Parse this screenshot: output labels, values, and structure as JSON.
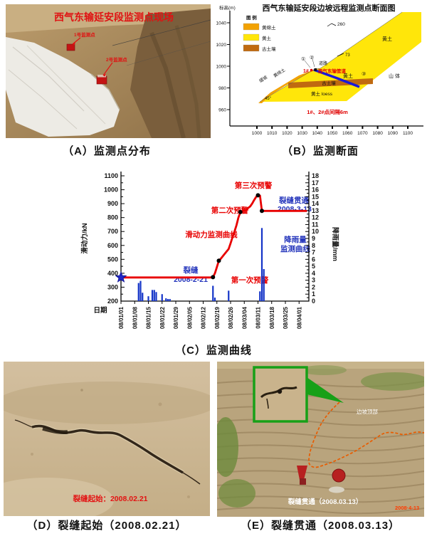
{
  "figure": {
    "captions": {
      "a": "（A）监测点分布",
      "b": "（B）监测断面",
      "c": "（C）监测曲线",
      "d": "（D）裂缝起始（2008.02.21）",
      "e": "（E）裂缝贯通（2008.03.13）"
    }
  },
  "panel_a": {
    "photo_title": "西气东输延安段监测点现场",
    "marker1_label": "1号监测点",
    "marker2_label": "2号监测点"
  },
  "panel_b": {
    "title": "西气东输延安段边坡远程监测点断面图",
    "y_axis_label": "标高(m)",
    "y_ticks": [
      1040,
      1020,
      1000,
      980,
      960
    ],
    "x_ticks": [
      1000,
      1010,
      1020,
      1030,
      1040,
      1050,
      1060,
      1070,
      1080,
      1090,
      1100
    ],
    "legend_title": "图  例",
    "legend": [
      {
        "label": "黄绵土",
        "color": "#F2A202"
      },
      {
        "label": "黄土",
        "color": "#FFE60A"
      },
      {
        "label": "古土壤",
        "color": "#C06A10"
      }
    ],
    "labels": {
      "slope_260": "260",
      "slope_73": "73",
      "loess_top": "黄土",
      "loess_mid": "黄土",
      "loess_bottom": "黄土 loess",
      "mountain": "山 体",
      "paleosol": "古土壤",
      "gentle_slope": "缓坡",
      "loessial_soil": "黄绵土",
      "angle_45": "45°",
      "road": "道路",
      "point_1": "1#",
      "pipeline": "西气东输管道",
      "circle_1": "①",
      "circle_2": "②",
      "circle_3": "③",
      "spacing_note": "1#、2#点间隔6m"
    },
    "colors": {
      "loess": "#FFE60A",
      "loessial": "#F2A202",
      "paleosol": "#C06A10",
      "pipeline_line": "#1A1AD8"
    }
  },
  "chart_data": {
    "type": "line+bar",
    "xlabel": "日期",
    "ylabel_left": "滑动力/kN",
    "ylabel_right": "降雨量/mm",
    "ylim_left": [
      200,
      1100
    ],
    "ylim_right": [
      0,
      18
    ],
    "x_tick_labels": [
      "08/01/01",
      "08/01/08",
      "08/01/15",
      "08/01/22",
      "08/01/29",
      "08/02/05",
      "08/02/12",
      "08/02/19",
      "08/02/26",
      "08/03/04",
      "08/03/11",
      "08/03/18",
      "08/03/25",
      "08/04/01"
    ],
    "series": [
      {
        "name": "滑动力监测曲线",
        "type": "line",
        "color": "#E80000",
        "points": [
          [
            "08/01/01",
            370
          ],
          [
            "08/02/16",
            370
          ],
          [
            "08/02/17",
            372
          ],
          [
            "08/02/18",
            400
          ],
          [
            "08/02/19",
            445
          ],
          [
            "08/02/20",
            490
          ],
          [
            "08/02/21",
            505
          ],
          [
            "08/02/23",
            540
          ],
          [
            "08/02/25",
            575
          ],
          [
            "08/02/26",
            615
          ],
          [
            "08/02/27",
            660
          ],
          [
            "08/02/28",
            700
          ],
          [
            "08/02/29",
            745
          ],
          [
            "08/03/01",
            800
          ],
          [
            "08/03/02",
            840
          ],
          [
            "08/03/03",
            848
          ],
          [
            "08/03/05",
            858
          ],
          [
            "08/03/07",
            880
          ],
          [
            "08/03/08",
            900
          ],
          [
            "08/03/09",
            925
          ],
          [
            "08/03/10",
            948
          ],
          [
            "08/03/11",
            960
          ],
          [
            "08/03/12",
            958
          ],
          [
            "08/03/13",
            848
          ],
          [
            "08/04/05",
            848
          ]
        ]
      },
      {
        "name": "降雨量监测曲线",
        "type": "bar",
        "color": "#1535C8",
        "points": [
          [
            "08/01/10",
            2.6
          ],
          [
            "08/01/11",
            2.9
          ],
          [
            "08/01/12",
            1.2
          ],
          [
            "08/01/15",
            0.7
          ],
          [
            "08/01/17",
            1.6
          ],
          [
            "08/01/18",
            1.6
          ],
          [
            "08/01/19",
            1.3
          ],
          [
            "08/01/22",
            1.0
          ],
          [
            "08/01/24",
            0.4
          ],
          [
            "08/01/25",
            0.3
          ],
          [
            "08/01/26",
            0.3
          ],
          [
            "08/02/17",
            2.2
          ],
          [
            "08/02/18",
            0.5
          ],
          [
            "08/02/25",
            1.5
          ],
          [
            "08/03/12",
            1.4
          ],
          [
            "08/03/13",
            10.5
          ],
          [
            "08/03/14",
            4.6
          ]
        ]
      }
    ],
    "event_points": [
      [
        "08/02/17",
        372
      ],
      [
        "08/02/20",
        490
      ],
      [
        "08/03/02",
        840
      ],
      [
        "08/03/11",
        960
      ],
      [
        "08/03/13",
        848
      ]
    ],
    "start_marker": {
      "shape": "star",
      "color": "#2026C8",
      "point": [
        "08/01/01",
        370
      ]
    },
    "annotations": [
      {
        "id": "warn3",
        "text": "第三次预警",
        "color": "#E80000"
      },
      {
        "id": "warn2",
        "text": "第二次预警",
        "color": "#E80000"
      },
      {
        "id": "warn1",
        "text": "第一次预警",
        "color": "#E80000"
      },
      {
        "id": "crack_through",
        "text": "裂缝贯通",
        "text2": "2008-3-13",
        "color": "#2233BB"
      },
      {
        "id": "crack_start",
        "text": "裂缝",
        "text2": "2008-2-21",
        "color": "#2233BB"
      },
      {
        "id": "force_curve",
        "text": "滑动力监测曲线",
        "color": "#E80000"
      },
      {
        "id": "rain_curve",
        "text": "降雨量",
        "text2": "监测曲线",
        "color": "#2233BB"
      }
    ]
  },
  "panel_d": {
    "photo_label": "裂缝起始：2008.02.21"
  },
  "panel_e": {
    "photo_label": "裂缝贯通（2008.03.13）",
    "inset_note": "边坡顶部",
    "date_stamp": "2008·4-13"
  }
}
